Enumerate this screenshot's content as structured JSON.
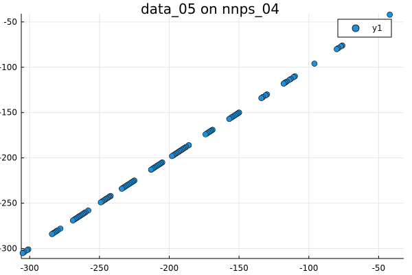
{
  "chart_data": {
    "type": "scatter",
    "title": "data_05 on nnps_04",
    "xlabel": "",
    "ylabel": "",
    "xlim": [
      -306,
      -32
    ],
    "ylim": [
      -311,
      -41
    ],
    "x_ticks": [
      -300,
      -250,
      -200,
      -150,
      -100,
      -50
    ],
    "x_tick_labels": [
      "-300",
      "-250",
      "-200",
      "-150",
      "-100",
      "-50"
    ],
    "y_ticks": [
      -300,
      -250,
      -200,
      -150,
      -100,
      -50
    ],
    "y_tick_labels": [
      "-300",
      "-250",
      "-200",
      "-150",
      "-100",
      "-50"
    ],
    "grid": true,
    "legend": "top-right",
    "series": [
      {
        "name": "y1",
        "color": "#1f8fd8",
        "points": [
          [
            -42,
            -42
          ],
          [
            -76,
            -76
          ],
          [
            -77,
            -77
          ],
          [
            -79,
            -79
          ],
          [
            -80,
            -80
          ],
          [
            -96,
            -96
          ],
          [
            -110,
            -110
          ],
          [
            -111,
            -111
          ],
          [
            -113,
            -113
          ],
          [
            -114,
            -114
          ],
          [
            -116,
            -116
          ],
          [
            -117,
            -117
          ],
          [
            -118,
            -118
          ],
          [
            -130,
            -130
          ],
          [
            -131,
            -131
          ],
          [
            -133,
            -133
          ],
          [
            -134,
            -134
          ],
          [
            -150,
            -150
          ],
          [
            -151,
            -151
          ],
          [
            -152,
            -152
          ],
          [
            -153,
            -153
          ],
          [
            -154,
            -154
          ],
          [
            -155,
            -155
          ],
          [
            -156,
            -156
          ],
          [
            -157,
            -157
          ],
          [
            -169,
            -169
          ],
          [
            -170,
            -170
          ],
          [
            -171,
            -171
          ],
          [
            -172,
            -172
          ],
          [
            -173,
            -173
          ],
          [
            -174,
            -174
          ],
          [
            -186,
            -186
          ],
          [
            -188,
            -188
          ],
          [
            -189,
            -189
          ],
          [
            -190,
            -190
          ],
          [
            -191,
            -191
          ],
          [
            -192,
            -192
          ],
          [
            -193,
            -193
          ],
          [
            -194,
            -194
          ],
          [
            -195,
            -195
          ],
          [
            -196,
            -196
          ],
          [
            -197,
            -197
          ],
          [
            -198,
            -198
          ],
          [
            -205,
            -205
          ],
          [
            -206,
            -206
          ],
          [
            -207,
            -207
          ],
          [
            -208,
            -208
          ],
          [
            -209,
            -209
          ],
          [
            -210,
            -210
          ],
          [
            -211,
            -211
          ],
          [
            -212,
            -212
          ],
          [
            -213,
            -213
          ],
          [
            -225,
            -225
          ],
          [
            -226,
            -226
          ],
          [
            -227,
            -227
          ],
          [
            -228,
            -228
          ],
          [
            -229,
            -229
          ],
          [
            -230,
            -230
          ],
          [
            -231,
            -231
          ],
          [
            -232,
            -232
          ],
          [
            -233,
            -233
          ],
          [
            -234,
            -234
          ],
          [
            -242,
            -242
          ],
          [
            -243,
            -243
          ],
          [
            -244,
            -244
          ],
          [
            -245,
            -245
          ],
          [
            -246,
            -246
          ],
          [
            -247,
            -247
          ],
          [
            -248,
            -248
          ],
          [
            -249,
            -249
          ],
          [
            -258,
            -258
          ],
          [
            -260,
            -260
          ],
          [
            -261,
            -261
          ],
          [
            -262,
            -262
          ],
          [
            -263,
            -263
          ],
          [
            -264,
            -264
          ],
          [
            -265,
            -265
          ],
          [
            -266,
            -266
          ],
          [
            -267,
            -267
          ],
          [
            -268,
            -268
          ],
          [
            -269,
            -269
          ],
          [
            -278,
            -278
          ],
          [
            -280,
            -280
          ],
          [
            -281,
            -281
          ],
          [
            -282,
            -282
          ],
          [
            -283,
            -283
          ],
          [
            -284,
            -284
          ],
          [
            -301,
            -301
          ],
          [
            -302,
            -302
          ],
          [
            -304,
            -304
          ],
          [
            -305,
            -305
          ]
        ]
      }
    ]
  }
}
